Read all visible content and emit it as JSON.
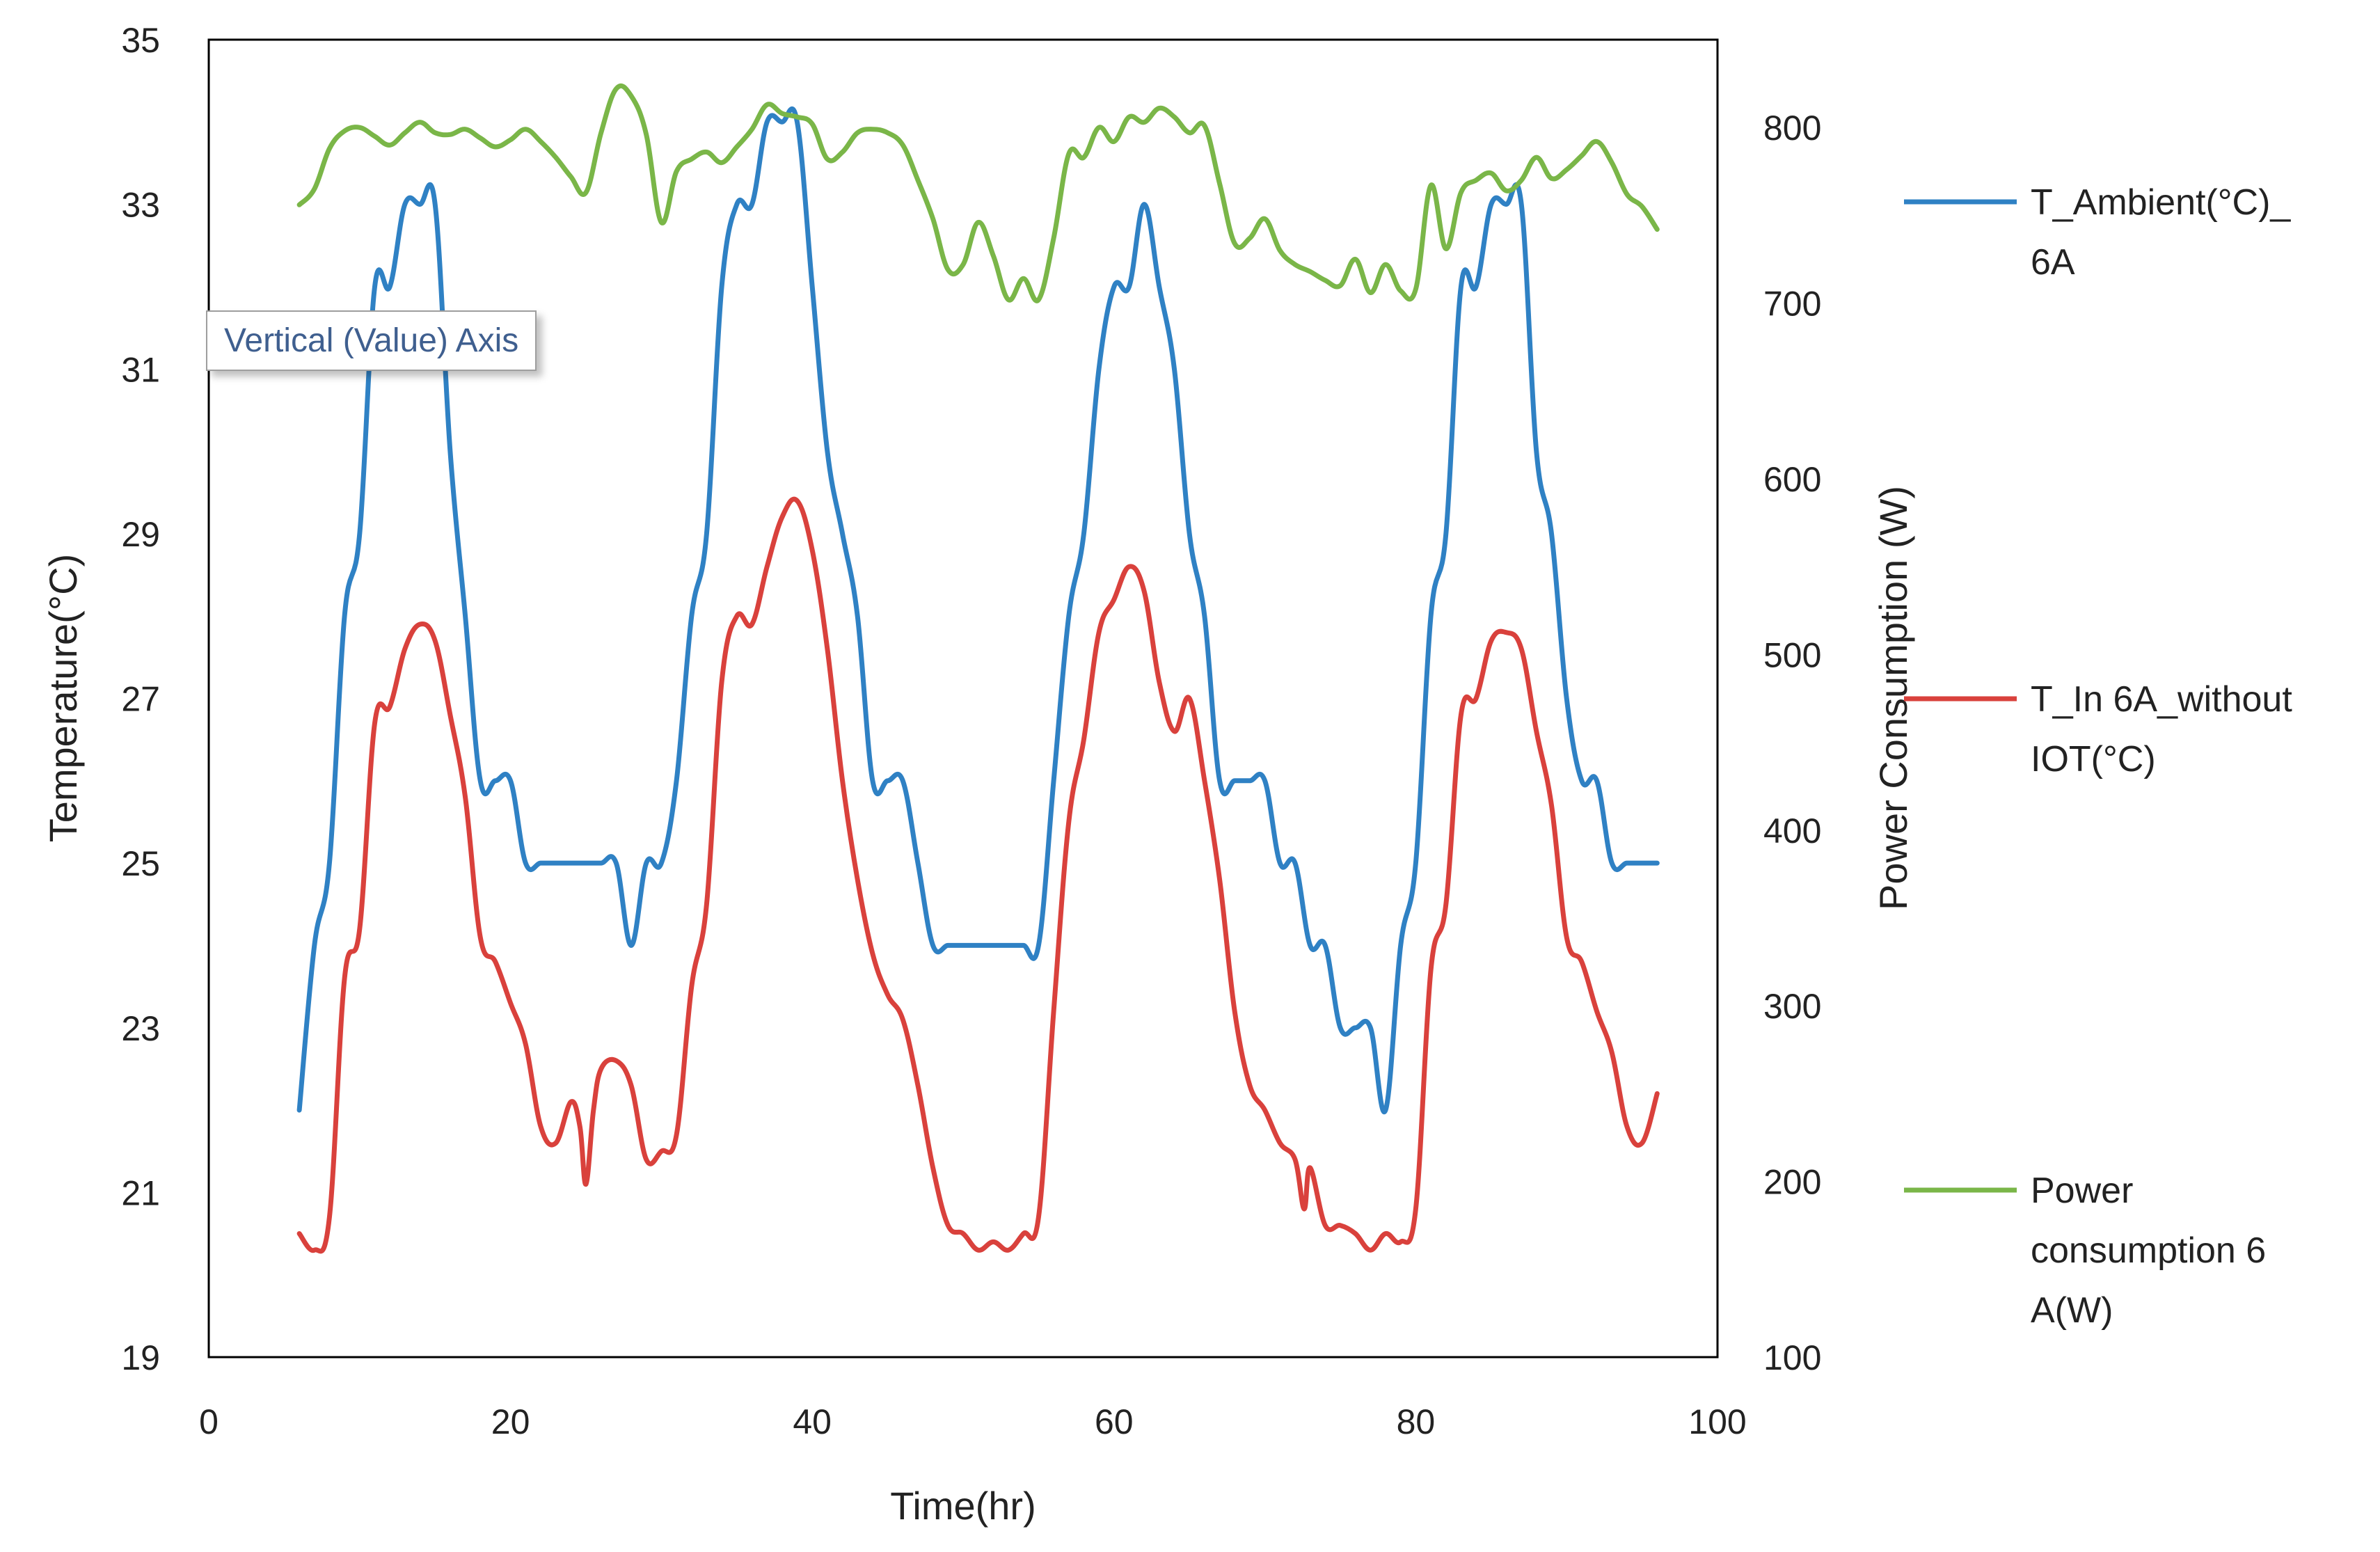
{
  "tooltip": "Vertical (Value) Axis",
  "colors": {
    "ambient": "#2f81c4",
    "inside": "#d9413c",
    "power": "#7ab648",
    "axis": "#000000"
  },
  "chart_data": {
    "type": "line",
    "title": "",
    "xlabel": "Time(hr)",
    "ylabel": "Temperature(°C)",
    "y2label": "Power Consumption (W)",
    "xlim": [
      0,
      100
    ],
    "ylim": [
      19,
      35
    ],
    "y2lim": [
      100,
      850
    ],
    "xticks": [
      0,
      20,
      40,
      60,
      80,
      100
    ],
    "yticks": [
      19,
      21,
      23,
      25,
      27,
      29,
      31,
      33,
      35
    ],
    "y2ticks": [
      100,
      200,
      300,
      400,
      500,
      600,
      700,
      800
    ],
    "grid": false,
    "legend_position": "right",
    "series": [
      {
        "name": "T_Ambient(°C)_ 6A",
        "legend_lines": [
          "T_Ambient(°C)_",
          "6A"
        ],
        "axis": "left",
        "color_key": "ambient",
        "points": [
          [
            6,
            22
          ],
          [
            7,
            24
          ],
          [
            8,
            25
          ],
          [
            9,
            28
          ],
          [
            10,
            29
          ],
          [
            11,
            32
          ],
          [
            12,
            32
          ],
          [
            13,
            33
          ],
          [
            14,
            33
          ],
          [
            15,
            33
          ],
          [
            16,
            30
          ],
          [
            17,
            28
          ],
          [
            18,
            26
          ],
          [
            19,
            26
          ],
          [
            20,
            26
          ],
          [
            21,
            25
          ],
          [
            22,
            25
          ],
          [
            23,
            25
          ],
          [
            24,
            25
          ],
          [
            25,
            25
          ],
          [
            26,
            25
          ],
          [
            27,
            25
          ],
          [
            28,
            24
          ],
          [
            29,
            25
          ],
          [
            30,
            25
          ],
          [
            31,
            26
          ],
          [
            32,
            28
          ],
          [
            33,
            29
          ],
          [
            34,
            32
          ],
          [
            35,
            33
          ],
          [
            36,
            33
          ],
          [
            37,
            34
          ],
          [
            38,
            34
          ],
          [
            39,
            34
          ],
          [
            40,
            32
          ],
          [
            41,
            30
          ],
          [
            42,
            29
          ],
          [
            43,
            28
          ],
          [
            44,
            26
          ],
          [
            45,
            26
          ],
          [
            46,
            26
          ],
          [
            47,
            25
          ],
          [
            48,
            24
          ],
          [
            49,
            24
          ],
          [
            50,
            24
          ],
          [
            51,
            24
          ],
          [
            52,
            24
          ],
          [
            53,
            24
          ],
          [
            54,
            24
          ],
          [
            55,
            24
          ],
          [
            56,
            26
          ],
          [
            57,
            28
          ],
          [
            58,
            29
          ],
          [
            59,
            31
          ],
          [
            60,
            32
          ],
          [
            61,
            32
          ],
          [
            62,
            33
          ],
          [
            63,
            32
          ],
          [
            64,
            31
          ],
          [
            65,
            29
          ],
          [
            66,
            28
          ],
          [
            67,
            26
          ],
          [
            68,
            26
          ],
          [
            69,
            26
          ],
          [
            70,
            26
          ],
          [
            71,
            25
          ],
          [
            72,
            25
          ],
          [
            73,
            24
          ],
          [
            74,
            24
          ],
          [
            75,
            23
          ],
          [
            76,
            23
          ],
          [
            77,
            23
          ],
          [
            78,
            22
          ],
          [
            79,
            24
          ],
          [
            80,
            25
          ],
          [
            81,
            28
          ],
          [
            82,
            29
          ],
          [
            83,
            32
          ],
          [
            84,
            32
          ],
          [
            85,
            33
          ],
          [
            86,
            33
          ],
          [
            87,
            33
          ],
          [
            88,
            30
          ],
          [
            89,
            29
          ],
          [
            90,
            27
          ],
          [
            91,
            26
          ],
          [
            92,
            26
          ],
          [
            93,
            25
          ],
          [
            94,
            25
          ],
          [
            95,
            25
          ],
          [
            96,
            25
          ]
        ]
      },
      {
        "name": "T_In 6A_without IOT(°C)",
        "legend_lines": [
          "T_In 6A_without",
          "IOT(°C)"
        ],
        "axis": "left",
        "color_key": "inside",
        "points": [
          [
            6,
            20.5
          ],
          [
            7,
            20.3
          ],
          [
            8,
            20.7
          ],
          [
            9,
            23.6
          ],
          [
            10,
            24.2
          ],
          [
            11,
            26.7
          ],
          [
            12,
            26.9
          ],
          [
            13,
            27.6
          ],
          [
            14,
            27.9
          ],
          [
            15,
            27.7
          ],
          [
            16,
            26.8
          ],
          [
            17,
            25.8
          ],
          [
            18,
            24.1
          ],
          [
            19,
            23.8
          ],
          [
            20,
            23.3
          ],
          [
            21,
            22.8
          ],
          [
            22,
            21.8
          ],
          [
            23,
            21.6
          ],
          [
            24,
            22.1
          ],
          [
            24.6,
            21.8
          ],
          [
            25,
            21.1
          ],
          [
            25.5,
            22
          ],
          [
            26,
            22.5
          ],
          [
            27,
            22.6
          ],
          [
            28,
            22.3
          ],
          [
            29,
            21.4
          ],
          [
            30,
            21.5
          ],
          [
            31,
            21.7
          ],
          [
            32,
            23.5
          ],
          [
            33,
            24.5
          ],
          [
            34,
            27.2
          ],
          [
            35,
            28
          ],
          [
            36,
            27.9
          ],
          [
            37,
            28.6
          ],
          [
            38,
            29.2
          ],
          [
            39,
            29.4
          ],
          [
            40,
            28.8
          ],
          [
            41,
            27.6
          ],
          [
            42,
            26
          ],
          [
            43,
            24.8
          ],
          [
            44,
            23.9
          ],
          [
            45,
            23.4
          ],
          [
            46,
            23.1
          ],
          [
            47,
            22.3
          ],
          [
            48,
            21.3
          ],
          [
            49,
            20.6
          ],
          [
            50,
            20.5
          ],
          [
            51,
            20.3
          ],
          [
            52,
            20.4
          ],
          [
            53,
            20.3
          ],
          [
            54,
            20.5
          ],
          [
            55,
            20.7
          ],
          [
            56,
            23.2
          ],
          [
            57,
            25.5
          ],
          [
            58,
            26.5
          ],
          [
            59,
            27.8
          ],
          [
            60,
            28.2
          ],
          [
            61,
            28.6
          ],
          [
            62,
            28.3
          ],
          [
            63,
            27.2
          ],
          [
            64,
            26.6
          ],
          [
            65,
            27
          ],
          [
            66,
            26
          ],
          [
            67,
            24.8
          ],
          [
            68,
            23.2
          ],
          [
            69,
            22.3
          ],
          [
            70,
            22
          ],
          [
            71,
            21.6
          ],
          [
            72,
            21.4
          ],
          [
            72.6,
            20.8
          ],
          [
            73,
            21.3
          ],
          [
            74,
            20.6
          ],
          [
            75,
            20.6
          ],
          [
            76,
            20.5
          ],
          [
            77,
            20.3
          ],
          [
            78,
            20.5
          ],
          [
            79,
            20.4
          ],
          [
            80,
            20.8
          ],
          [
            81,
            23.7
          ],
          [
            82,
            24.5
          ],
          [
            83,
            26.8
          ],
          [
            84,
            27
          ],
          [
            85,
            27.7
          ],
          [
            86,
            27.8
          ],
          [
            87,
            27.6
          ],
          [
            88,
            26.6
          ],
          [
            89,
            25.7
          ],
          [
            90,
            24.1
          ],
          [
            91,
            23.8
          ],
          [
            92,
            23.2
          ],
          [
            93,
            22.7
          ],
          [
            94,
            21.8
          ],
          [
            95,
            21.6
          ],
          [
            96,
            22.2
          ]
        ]
      },
      {
        "name": "Power consumption 6 A(W)",
        "legend_lines": [
          "Power",
          "consumption 6",
          "A(W)"
        ],
        "axis": "right",
        "color_key": "power",
        "points": [
          [
            6,
            756
          ],
          [
            7,
            765
          ],
          [
            8,
            788
          ],
          [
            9,
            798
          ],
          [
            10,
            800
          ],
          [
            11,
            795
          ],
          [
            12,
            790
          ],
          [
            13,
            797
          ],
          [
            14,
            803
          ],
          [
            15,
            797
          ],
          [
            16,
            796
          ],
          [
            17,
            799
          ],
          [
            18,
            794
          ],
          [
            19,
            789
          ],
          [
            20,
            793
          ],
          [
            21,
            799
          ],
          [
            22,
            792
          ],
          [
            23,
            783
          ],
          [
            24,
            772
          ],
          [
            25,
            763
          ],
          [
            26,
            797
          ],
          [
            27,
            822
          ],
          [
            28,
            818
          ],
          [
            29,
            796
          ],
          [
            30,
            746
          ],
          [
            31,
            775
          ],
          [
            32,
            782
          ],
          [
            33,
            786
          ],
          [
            34,
            780
          ],
          [
            35,
            789
          ],
          [
            36,
            799
          ],
          [
            37,
            813
          ],
          [
            38,
            808
          ],
          [
            39,
            806
          ],
          [
            40,
            802
          ],
          [
            41,
            782
          ],
          [
            42,
            786
          ],
          [
            43,
            797
          ],
          [
            44,
            799
          ],
          [
            45,
            797
          ],
          [
            46,
            790
          ],
          [
            47,
            770
          ],
          [
            48,
            748
          ],
          [
            49,
            719
          ],
          [
            50,
            722
          ],
          [
            51,
            746
          ],
          [
            52,
            727
          ],
          [
            53,
            702
          ],
          [
            54,
            714
          ],
          [
            55,
            702
          ],
          [
            56,
            737
          ],
          [
            57,
            785
          ],
          [
            58,
            783
          ],
          [
            59,
            800
          ],
          [
            60,
            792
          ],
          [
            61,
            806
          ],
          [
            62,
            803
          ],
          [
            63,
            811
          ],
          [
            64,
            806
          ],
          [
            65,
            797
          ],
          [
            66,
            801
          ],
          [
            67,
            768
          ],
          [
            68,
            734
          ],
          [
            69,
            737
          ],
          [
            70,
            748
          ],
          [
            71,
            730
          ],
          [
            72,
            722
          ],
          [
            73,
            718
          ],
          [
            74,
            713
          ],
          [
            75,
            710
          ],
          [
            76,
            725
          ],
          [
            77,
            706
          ],
          [
            78,
            722
          ],
          [
            79,
            707
          ],
          [
            80,
            708
          ],
          [
            81,
            767
          ],
          [
            82,
            731
          ],
          [
            83,
            763
          ],
          [
            84,
            770
          ],
          [
            85,
            774
          ],
          [
            86,
            764
          ],
          [
            87,
            770
          ],
          [
            88,
            783
          ],
          [
            89,
            771
          ],
          [
            90,
            776
          ],
          [
            91,
            784
          ],
          [
            92,
            792
          ],
          [
            93,
            780
          ],
          [
            94,
            762
          ],
          [
            95,
            755
          ],
          [
            96,
            742
          ]
        ]
      }
    ]
  }
}
